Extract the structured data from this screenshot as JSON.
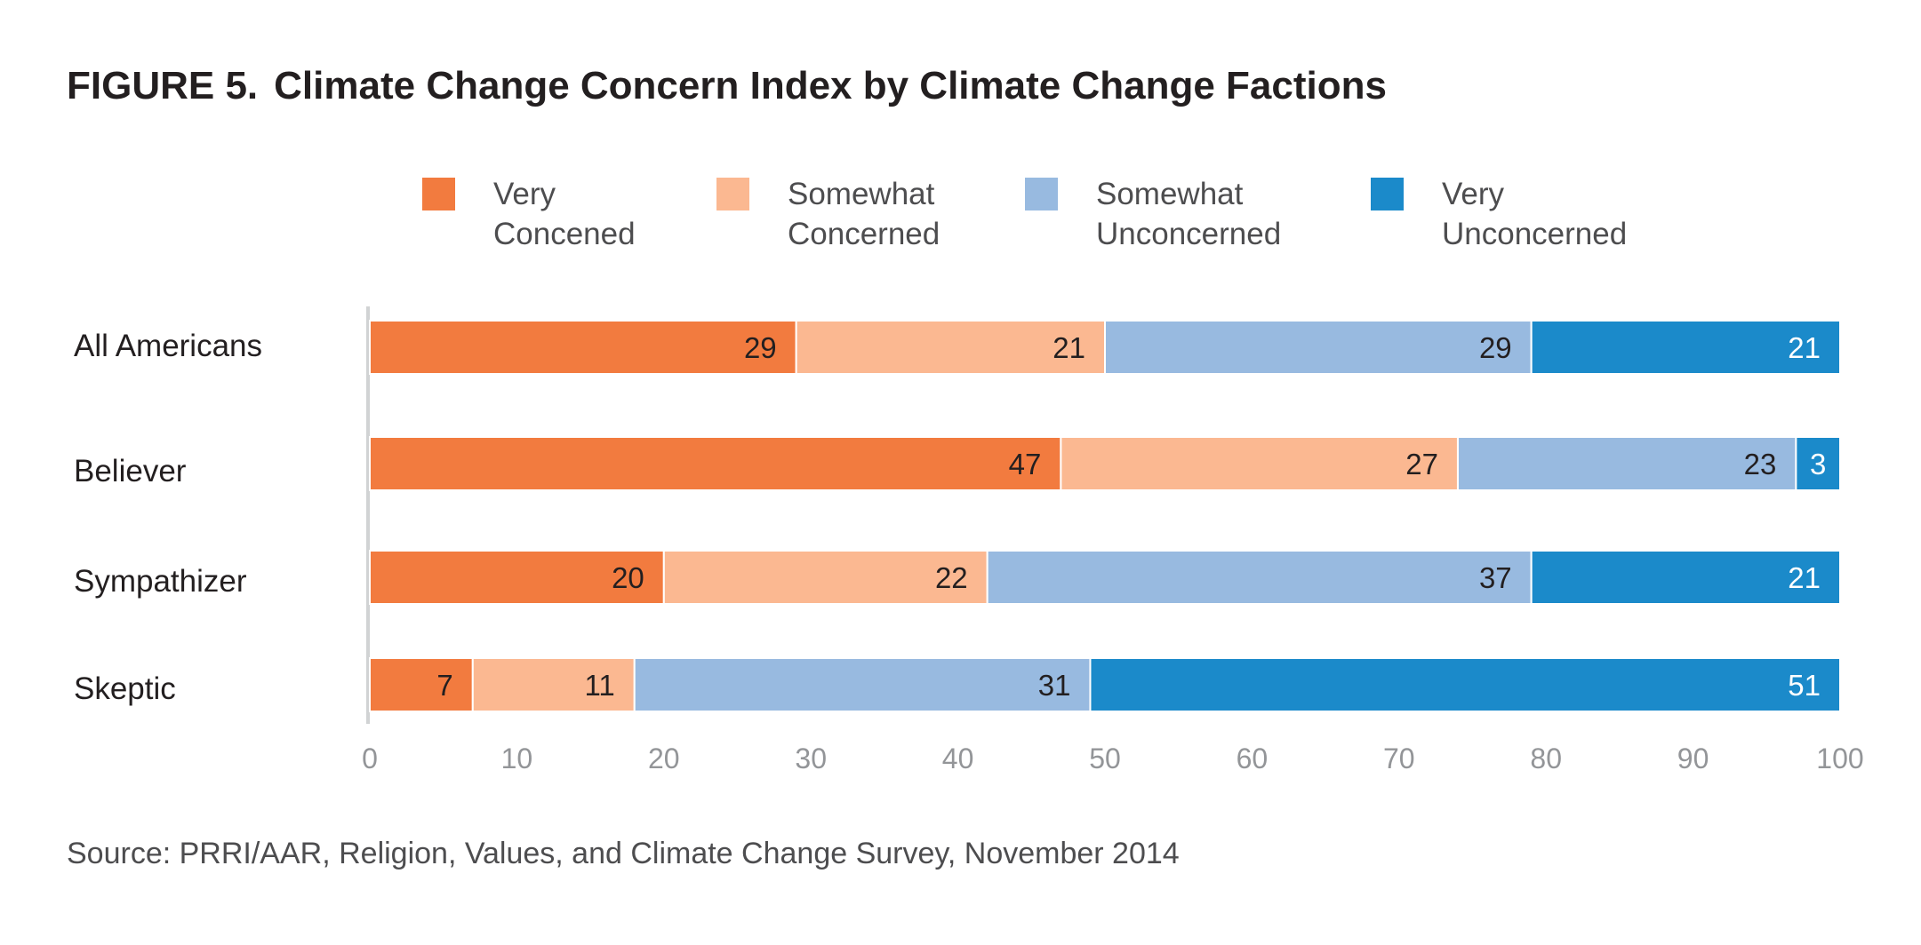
{
  "chart_data": {
    "type": "bar",
    "orientation": "horizontal",
    "stacked": true,
    "title": {
      "figure": "FIGURE 5.",
      "text": "Climate Change Concern Index by Climate Change Factions"
    },
    "categories": [
      "All Americans",
      "Believer",
      "Sympathizer",
      "Skeptic"
    ],
    "series": [
      {
        "name": [
          "Very",
          "Concened"
        ],
        "color": "#f27b3f",
        "label_color": "#231f20",
        "values": [
          29,
          47,
          20,
          7
        ]
      },
      {
        "name": [
          "Somewhat",
          "Concerned"
        ],
        "color": "#fbb891",
        "label_color": "#231f20",
        "values": [
          21,
          27,
          22,
          11
        ]
      },
      {
        "name": [
          "Somewhat",
          "Unconcerned"
        ],
        "color": "#98bae0",
        "label_color": "#231f20",
        "values": [
          29,
          23,
          37,
          31
        ]
      },
      {
        "name": [
          "Very",
          "Unconcerned"
        ],
        "color": "#1b8aca",
        "label_color": "#ffffff",
        "values": [
          21,
          3,
          21,
          51
        ]
      }
    ],
    "xlim": [
      0,
      100
    ],
    "xticks": [
      0,
      10,
      20,
      30,
      40,
      50,
      60,
      70,
      80,
      90,
      100
    ],
    "xlabel": "",
    "ylabel": "",
    "grid": false,
    "legend_position": "top"
  },
  "source": "Source: PRRI/AAR, Religion, Values, and Climate Change Survey, November 2014"
}
